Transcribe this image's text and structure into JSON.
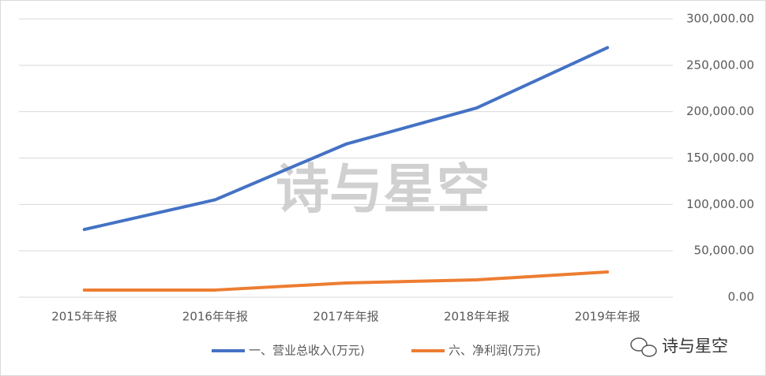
{
  "chart_data": {
    "type": "line",
    "categories": [
      "2015年年报",
      "2016年年报",
      "2017年年报",
      "2018年年报",
      "2019年年报"
    ],
    "series": [
      {
        "name": "一、营业总收入(万元)",
        "color": "#4472c4",
        "values": [
          73000,
          105000,
          165000,
          204000,
          269000
        ]
      },
      {
        "name": "六、净利润(万元)",
        "color": "#ed7d31",
        "values": [
          7600,
          7700,
          15300,
          18700,
          27200
        ]
      }
    ],
    "ylim": [
      0,
      300000
    ],
    "yticks": [
      {
        "value": 0,
        "label": "0.00"
      },
      {
        "value": 50000,
        "label": "50,000.00"
      },
      {
        "value": 100000,
        "label": "100,000.00"
      },
      {
        "value": 150000,
        "label": "150,000.00"
      },
      {
        "value": 200000,
        "label": "200,000.00"
      },
      {
        "value": 250000,
        "label": "250,000.00"
      },
      {
        "value": 300000,
        "label": "300,000.00"
      }
    ],
    "grid": true,
    "legend": "bottom",
    "watermark": "诗与星空",
    "brand": "诗与星空"
  }
}
